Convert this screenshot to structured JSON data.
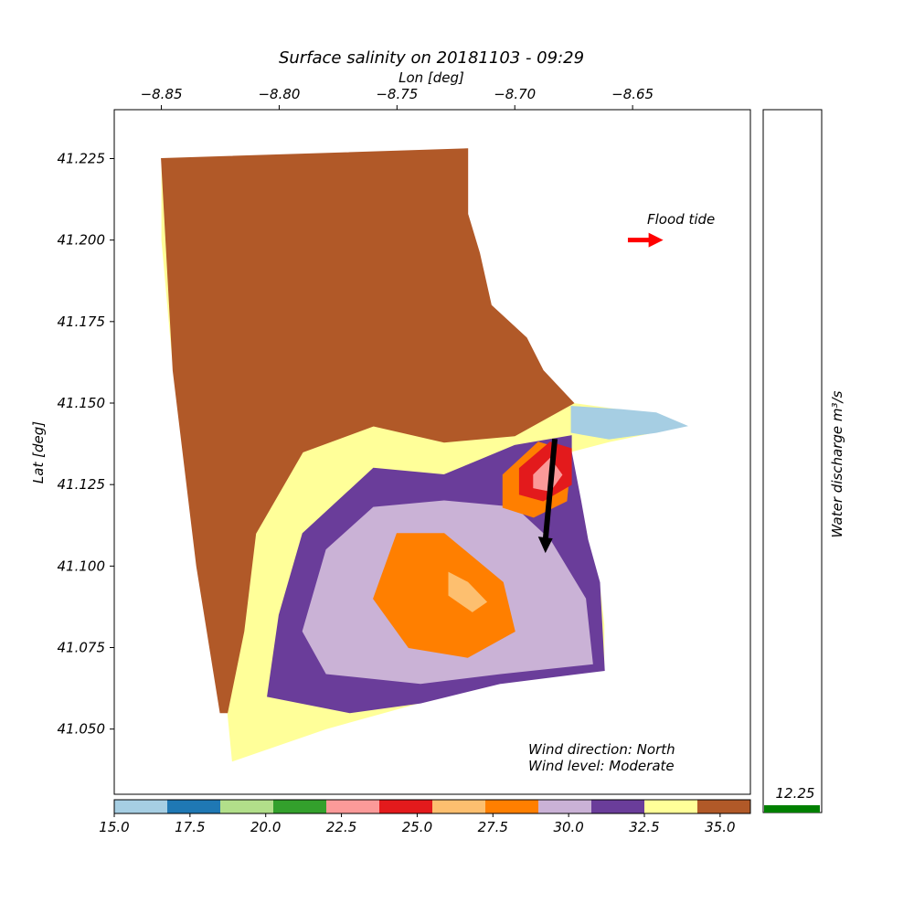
{
  "chart_data": {
    "type": "heatmap",
    "title": "Surface salinity on 20181103 - 09:29",
    "xlabel": "Lon [deg]",
    "ylabel": "Lat [deg]",
    "xlim": [
      -8.87,
      -8.6
    ],
    "ylim": [
      41.03,
      41.24
    ],
    "xticks": [
      -8.85,
      -8.8,
      -8.75,
      -8.7,
      -8.65
    ],
    "xtick_labels": [
      "−8.85",
      "−8.80",
      "−8.75",
      "−8.70",
      "−8.65"
    ],
    "yticks": [
      41.05,
      41.075,
      41.1,
      41.125,
      41.15,
      41.175,
      41.2,
      41.225
    ],
    "ytick_labels": [
      "41.050",
      "41.075",
      "41.100",
      "41.125",
      "41.150",
      "41.175",
      "41.200",
      "41.225"
    ],
    "x_axis_position": "top",
    "colorbar": {
      "range": [
        15.0,
        36.0
      ],
      "ticks": [
        15.0,
        17.5,
        20.0,
        22.5,
        25.0,
        27.5,
        30.0,
        32.5,
        35.0
      ],
      "tick_labels": [
        "15.0",
        "17.5",
        "20.0",
        "22.5",
        "25.0",
        "27.5",
        "30.0",
        "32.5",
        "35.0"
      ],
      "colors": [
        "#a6cee3",
        "#1f78b4",
        "#b2df8a",
        "#33a02c",
        "#fb9a99",
        "#e31a1c",
        "#fdbf6f",
        "#ff7f00",
        "#cab2d6",
        "#6a3d9a",
        "#ffff99",
        "#b15928"
      ]
    },
    "domain_outline": [
      [
        -8.85,
        41.225
      ],
      [
        -8.72,
        41.228
      ],
      [
        -8.72,
        41.208
      ],
      [
        -8.715,
        41.196
      ],
      [
        -8.71,
        41.18
      ],
      [
        -8.695,
        41.17
      ],
      [
        -8.688,
        41.16
      ],
      [
        -8.675,
        41.15
      ],
      [
        -8.655,
        41.148
      ],
      [
        -8.64,
        41.147
      ],
      [
        -8.627,
        41.143
      ],
      [
        -8.66,
        41.138
      ],
      [
        -8.676,
        41.135
      ],
      [
        -8.672,
        41.12
      ],
      [
        -8.669,
        41.108
      ],
      [
        -8.664,
        41.095
      ],
      [
        -8.662,
        41.082
      ],
      [
        -8.662,
        41.068
      ],
      [
        -8.706,
        41.064
      ],
      [
        -8.74,
        41.058
      ],
      [
        -8.78,
        41.05
      ],
      [
        -8.82,
        41.04
      ],
      [
        -8.822,
        41.055
      ],
      [
        -8.832,
        41.1
      ],
      [
        -8.845,
        41.16
      ],
      [
        -8.85,
        41.2
      ]
    ],
    "zones": [
      {
        "color": "#b15928",
        "value": 35.5,
        "outline": [
          [
            -8.85,
            41.225
          ],
          [
            -8.72,
            41.228
          ],
          [
            -8.72,
            41.208
          ],
          [
            -8.715,
            41.196
          ],
          [
            -8.71,
            41.18
          ],
          [
            -8.695,
            41.17
          ],
          [
            -8.688,
            41.16
          ],
          [
            -8.675,
            41.15
          ],
          [
            -8.7,
            41.14
          ],
          [
            -8.73,
            41.138
          ],
          [
            -8.76,
            41.143
          ],
          [
            -8.79,
            41.135
          ],
          [
            -8.81,
            41.11
          ],
          [
            -8.815,
            41.08
          ],
          [
            -8.822,
            41.055
          ],
          [
            -8.825,
            41.055
          ],
          [
            -8.835,
            41.1
          ],
          [
            -8.845,
            41.16
          ]
        ]
      },
      {
        "color": "#6a3d9a",
        "value": 31.5,
        "outline": [
          [
            -8.676,
            41.14
          ],
          [
            -8.7,
            41.137
          ],
          [
            -8.73,
            41.128
          ],
          [
            -8.76,
            41.13
          ],
          [
            -8.79,
            41.11
          ],
          [
            -8.8,
            41.085
          ],
          [
            -8.805,
            41.06
          ],
          [
            -8.77,
            41.055
          ],
          [
            -8.74,
            41.058
          ],
          [
            -8.706,
            41.064
          ],
          [
            -8.662,
            41.068
          ],
          [
            -8.664,
            41.095
          ],
          [
            -8.669,
            41.108
          ],
          [
            -8.672,
            41.12
          ],
          [
            -8.676,
            41.135
          ]
        ]
      },
      {
        "color": "#cab2d6",
        "value": 29.5,
        "outline": [
          [
            -8.78,
            41.105
          ],
          [
            -8.76,
            41.118
          ],
          [
            -8.73,
            41.12
          ],
          [
            -8.7,
            41.118
          ],
          [
            -8.685,
            41.108
          ],
          [
            -8.67,
            41.09
          ],
          [
            -8.667,
            41.07
          ],
          [
            -8.706,
            41.067
          ],
          [
            -8.74,
            41.064
          ],
          [
            -8.78,
            41.067
          ],
          [
            -8.79,
            41.08
          ]
        ]
      },
      {
        "color": "#ff7f00",
        "value": 27.8,
        "outline": [
          [
            -8.75,
            41.11
          ],
          [
            -8.73,
            41.11
          ],
          [
            -8.705,
            41.095
          ],
          [
            -8.7,
            41.08
          ],
          [
            -8.72,
            41.072
          ],
          [
            -8.745,
            41.075
          ],
          [
            -8.76,
            41.09
          ]
        ]
      },
      {
        "color": "#fdbf6f",
        "value": 26.5,
        "outline": [
          [
            -8.728,
            41.098
          ],
          [
            -8.72,
            41.095
          ],
          [
            -8.712,
            41.089
          ],
          [
            -8.718,
            41.086
          ],
          [
            -8.728,
            41.091
          ]
        ]
      },
      {
        "color": "#ff7f00",
        "value": 27.8,
        "outline": [
          [
            -8.69,
            41.138
          ],
          [
            -8.705,
            41.128
          ],
          [
            -8.705,
            41.118
          ],
          [
            -8.692,
            41.115
          ],
          [
            -8.678,
            41.12
          ],
          [
            -8.676,
            41.135
          ]
        ]
      },
      {
        "color": "#e31a1c",
        "value": 24.5,
        "outline": [
          [
            -8.685,
            41.138
          ],
          [
            -8.698,
            41.13
          ],
          [
            -8.698,
            41.122
          ],
          [
            -8.688,
            41.12
          ],
          [
            -8.676,
            41.125
          ],
          [
            -8.676,
            41.136
          ]
        ]
      },
      {
        "color": "#fb9a99",
        "value": 23.0,
        "outline": [
          [
            -8.685,
            41.133
          ],
          [
            -8.692,
            41.128
          ],
          [
            -8.692,
            41.124
          ],
          [
            -8.685,
            41.123
          ],
          [
            -8.68,
            41.128
          ]
        ]
      },
      {
        "color": "#a6cee3",
        "value": 16.0,
        "outline": [
          [
            -8.676,
            41.149
          ],
          [
            -8.655,
            41.148
          ],
          [
            -8.64,
            41.147
          ],
          [
            -8.627,
            41.143
          ],
          [
            -8.64,
            41.141
          ],
          [
            -8.66,
            41.139
          ],
          [
            -8.676,
            41.141
          ]
        ]
      }
    ],
    "wind_arrow": {
      "from": [
        -8.683,
        41.139
      ],
      "to": [
        -8.687,
        41.104
      ]
    },
    "flood_arrow": {
      "from": [
        -8.652,
        41.2
      ],
      "to": [
        -8.637,
        41.2
      ]
    }
  },
  "annotations": {
    "flood_tide": "Flood tide",
    "wind_direction": "Wind direction: North",
    "wind_level": "Wind level: Moderate"
  },
  "discharge": {
    "label": "Water discharge m³/s",
    "value": "12.25",
    "bar_color": "#008000",
    "flood_arrow_color": "#ff0000",
    "wind_arrow_color": "#000000"
  }
}
